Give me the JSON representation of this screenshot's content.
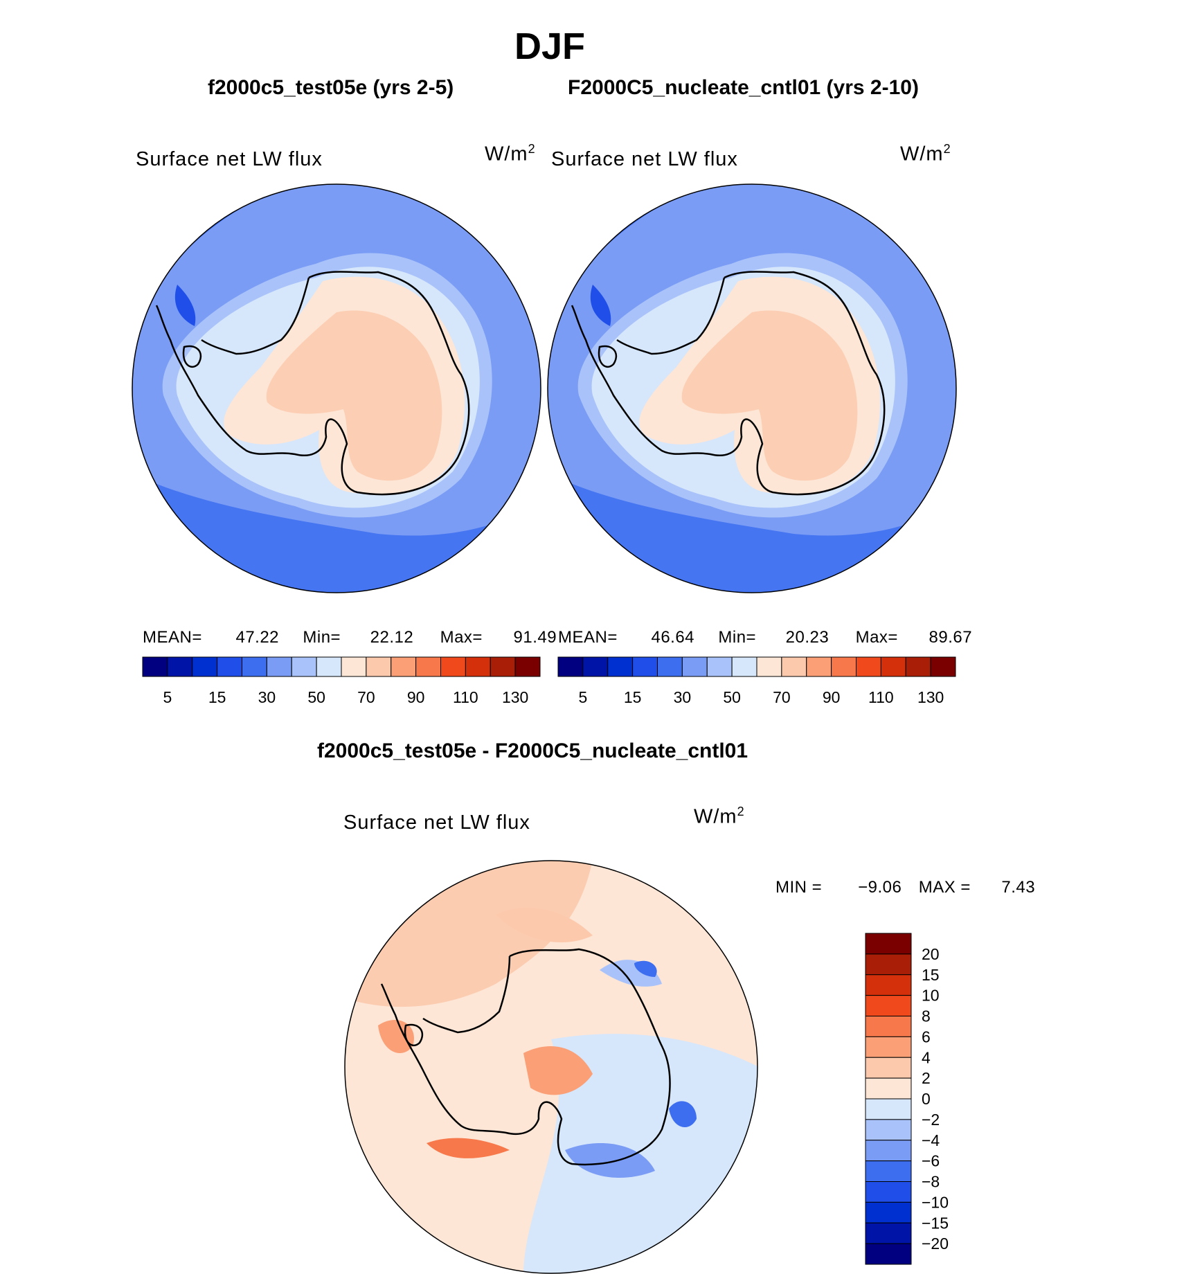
{
  "figure": {
    "title": "DJF",
    "difference_title": "f2000c5_test05e - F2000C5_nucleate_cntl01"
  },
  "panels": [
    {
      "case_title": "f2000c5_test05e (yrs 2-5)",
      "variable": "Surface net LW flux",
      "units": "W/m",
      "units_exp": "2",
      "mean_label": "MEAN=",
      "mean": "47.22",
      "min_label": "Min=",
      "min": "22.12",
      "max_label": "Max=",
      "max": "91.49"
    },
    {
      "case_title": "F2000C5_nucleate_cntl01 (yrs 2-10)",
      "variable": "Surface net LW flux",
      "units": "W/m",
      "units_exp": "2",
      "mean_label": "MEAN=",
      "mean": "46.64",
      "min_label": "Min=",
      "min": "20.23",
      "max_label": "Max=",
      "max": "89.67"
    }
  ],
  "diff_panel": {
    "variable": "Surface net LW flux",
    "units": "W/m",
    "units_exp": "2",
    "min_label": "MIN =",
    "min": "−9.06",
    "max_label": "MAX =",
    "max": "7.43"
  },
  "colorbars": {
    "absolute": {
      "colors": [
        "#000080",
        "#0015a8",
        "#0030d0",
        "#1f4fe8",
        "#3d6ef0",
        "#7a9cf5",
        "#a9c3fa",
        "#d6e6fb",
        "#fde6d6",
        "#fcc9ad",
        "#fa9f76",
        "#f7784a",
        "#f04a1c",
        "#d4300c",
        "#a81e07",
        "#7a0000"
      ],
      "tick_labels": [
        "5",
        "15",
        "30",
        "50",
        "70",
        "90",
        "110",
        "130"
      ]
    },
    "difference": {
      "colors": [
        "#000080",
        "#0015a8",
        "#0030d0",
        "#1f4fe8",
        "#3d6ef0",
        "#7a9cf5",
        "#a9c3fa",
        "#d6e6fb",
        "#fde6d6",
        "#fcc9ad",
        "#fa9f76",
        "#f7784a",
        "#f04a1c",
        "#d4300c",
        "#a81e07",
        "#7a0000"
      ],
      "tick_labels": [
        "20",
        "15",
        "10",
        "8",
        "6",
        "4",
        "2",
        "0",
        "−2",
        "−4",
        "−6",
        "−8",
        "−10",
        "−15",
        "−20"
      ]
    }
  }
}
